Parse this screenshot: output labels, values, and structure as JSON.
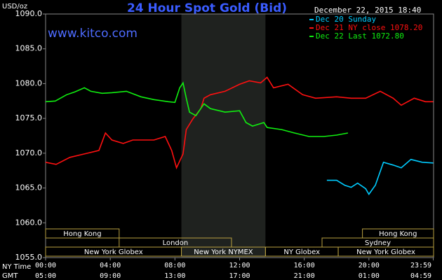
{
  "chart_data": {
    "type": "line",
    "title": "24 Hour Spot Gold (Bid)",
    "subtitle": "December 22, 2015 18:40",
    "watermark": "www.kitco.com",
    "y_label": "USD/oz",
    "x_label": "NY Time",
    "x2_label": "GMT",
    "xlim": [
      0,
      24
    ],
    "xticks": [
      {
        "value": 0,
        "label": "00:00"
      },
      {
        "value": 4,
        "label": "04:00"
      },
      {
        "value": 8,
        "label": "08:00"
      },
      {
        "value": 12,
        "label": "12:00"
      },
      {
        "value": 16,
        "label": "16:00"
      },
      {
        "value": 20,
        "label": "20:00"
      },
      {
        "value": 23.98,
        "label": "23:59"
      }
    ],
    "x2ticks": [
      {
        "value": 0,
        "label": "05:00"
      },
      {
        "value": 4,
        "label": "09:00"
      },
      {
        "value": 8,
        "label": "13:00"
      },
      {
        "value": 12,
        "label": "17:00"
      },
      {
        "value": 16,
        "label": "21:00"
      },
      {
        "value": 20,
        "label": "01:00"
      },
      {
        "value": 23.98,
        "label": "04:59"
      }
    ],
    "ylim": [
      1055,
      1090
    ],
    "yticks": [
      {
        "value": 1055,
        "label": "1055.0"
      },
      {
        "value": 1060,
        "label": "1060.0"
      },
      {
        "value": 1065,
        "label": "1065.0"
      },
      {
        "value": 1070,
        "label": "1070.0"
      },
      {
        "value": 1075,
        "label": "1075.0"
      },
      {
        "value": 1080,
        "label": "1080.0"
      },
      {
        "value": 1085,
        "label": "1085.0"
      },
      {
        "value": 1090,
        "label": "1090.0"
      }
    ],
    "series": [
      {
        "name": "Dec 20 Sunday",
        "color": "#00ccff",
        "x": [
          17.4,
          18,
          18.5,
          18.9,
          19.3,
          19.8,
          20,
          20.4,
          20.9,
          21.5,
          22,
          22.6,
          23.3,
          23.98
        ],
        "values": [
          1066.1,
          1066.1,
          1065.4,
          1065.1,
          1065.7,
          1064.9,
          1064.1,
          1065.4,
          1068.7,
          1068.3,
          1067.9,
          1069.1,
          1068.7,
          1068.6
        ]
      },
      {
        "name": "Dec 21 NY close 1078.20",
        "color": "#ff1010",
        "x": [
          0,
          0.65,
          1.5,
          2.4,
          3.3,
          3.7,
          4.1,
          4.8,
          5.4,
          6.7,
          7.4,
          7.8,
          8.1,
          8.5,
          8.7,
          9.1,
          9.6,
          9.8,
          10.2,
          11.1,
          12,
          12.6,
          13.3,
          13.7,
          14.1,
          15,
          15.9,
          16.7,
          18,
          18.9,
          19.8,
          20.7,
          21.5,
          22,
          22.8,
          23.5,
          23.98
        ],
        "values": [
          1068.7,
          1068.4,
          1069.4,
          1069.9,
          1070.4,
          1072.9,
          1071.9,
          1071.4,
          1071.9,
          1071.9,
          1072.4,
          1070.4,
          1067.9,
          1069.9,
          1073.4,
          1074.9,
          1076.4,
          1077.9,
          1078.4,
          1078.9,
          1079.9,
          1080.4,
          1080.1,
          1080.9,
          1079.4,
          1079.9,
          1078.4,
          1077.9,
          1078.1,
          1077.9,
          1077.9,
          1078.9,
          1077.9,
          1076.9,
          1077.9,
          1077.4,
          1077.4
        ]
      },
      {
        "name": "Dec 22 Last 1072.80",
        "color": "#10f010",
        "x": [
          0,
          0.6,
          1.3,
          1.8,
          2.4,
          2.8,
          3.5,
          4.1,
          5,
          5.9,
          6.7,
          7.6,
          8,
          8.3,
          8.5,
          8.7,
          8.9,
          9.3,
          9.8,
          10.2,
          11.1,
          12,
          12.4,
          12.8,
          13.5,
          13.7,
          14.6,
          15.4,
          16.3,
          17.2,
          18,
          18.7
        ],
        "values": [
          1077.4,
          1077.5,
          1078.4,
          1078.8,
          1079.4,
          1078.9,
          1078.6,
          1078.7,
          1078.9,
          1078.1,
          1077.7,
          1077.4,
          1077.3,
          1079.4,
          1080.1,
          1077.9,
          1075.9,
          1075.4,
          1077.1,
          1076.4,
          1075.9,
          1076.1,
          1074.4,
          1073.9,
          1074.4,
          1073.7,
          1073.4,
          1072.9,
          1072.4,
          1072.4,
          1072.6,
          1072.9
        ]
      }
    ],
    "sessions": [
      [
        {
          "label": "Hong Kong",
          "start": 0,
          "end": 4.55
        },
        {
          "label": "Hong Kong",
          "start": 19.6,
          "end": 24
        }
      ],
      [
        {
          "label": "London",
          "start": 4.55,
          "end": 11.5
        },
        {
          "label": "Sydney",
          "start": 17.1,
          "end": 24
        }
      ],
      [
        {
          "label": "New York Globex",
          "start": 0,
          "end": 8.4
        },
        {
          "label": "New York NYMEX",
          "start": 8.4,
          "end": 13.6
        },
        {
          "label": "NY Globex",
          "start": 13.6,
          "end": 18.1
        },
        {
          "label": "New York Globex",
          "start": 18.1,
          "end": 24
        }
      ]
    ]
  }
}
